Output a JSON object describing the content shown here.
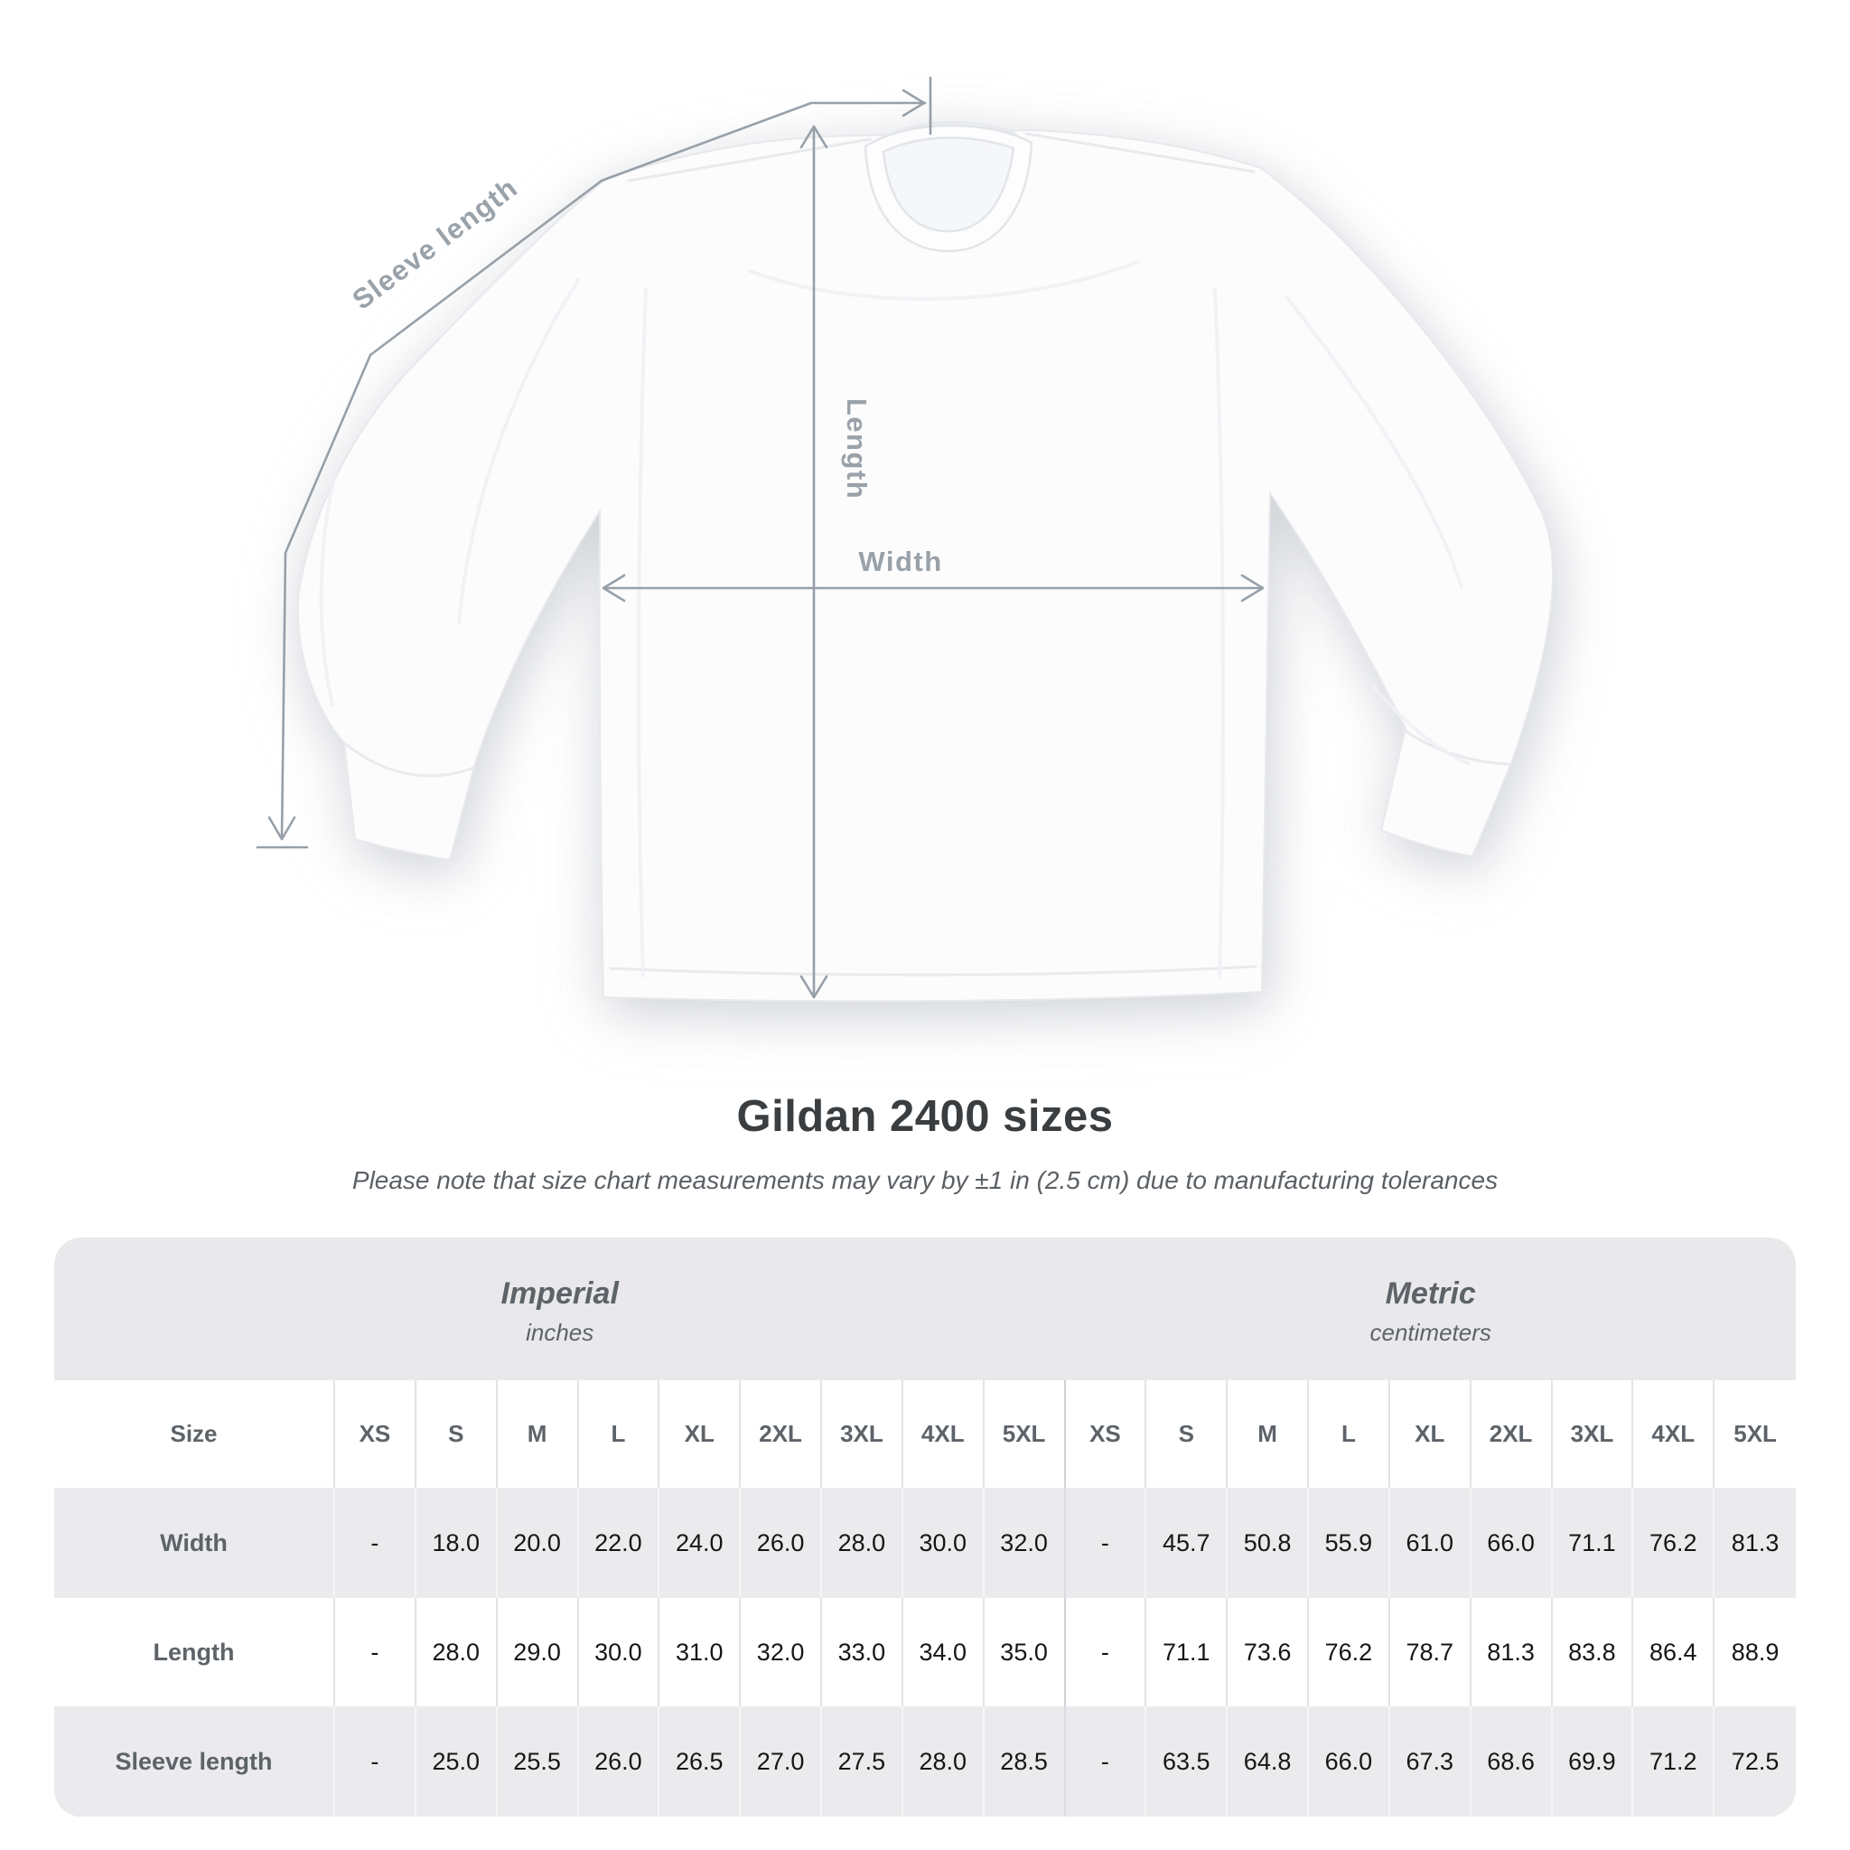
{
  "diagram": {
    "sleeve_length_label": "Sleeve length",
    "length_label": "Length",
    "width_label": "Width"
  },
  "title": "Gildan 2400 sizes",
  "subtitle": "Please note that size chart measurements may vary by ±1 in (2.5 cm) due to manufacturing tolerances",
  "table": {
    "sections": [
      {
        "label": "Imperial",
        "unit": "inches"
      },
      {
        "label": "Metric",
        "unit": "centimeters"
      }
    ],
    "size_column_header": "Size",
    "sizes": [
      "XS",
      "S",
      "M",
      "L",
      "XL",
      "2XL",
      "3XL",
      "4XL",
      "5XL"
    ],
    "rows": [
      {
        "label": "Width",
        "imperial": [
          "-",
          "18.0",
          "20.0",
          "22.0",
          "24.0",
          "26.0",
          "28.0",
          "30.0",
          "32.0"
        ],
        "metric": [
          "-",
          "45.7",
          "50.8",
          "55.9",
          "61.0",
          "66.0",
          "71.1",
          "76.2",
          "81.3"
        ]
      },
      {
        "label": "Length",
        "imperial": [
          "-",
          "28.0",
          "29.0",
          "30.0",
          "31.0",
          "32.0",
          "33.0",
          "34.0",
          "35.0"
        ],
        "metric": [
          "-",
          "71.1",
          "73.6",
          "76.2",
          "78.7",
          "81.3",
          "83.8",
          "86.4",
          "88.9"
        ]
      },
      {
        "label": "Sleeve length",
        "imperial": [
          "-",
          "25.0",
          "25.5",
          "26.0",
          "26.5",
          "27.0",
          "27.5",
          "28.0",
          "28.5"
        ],
        "metric": [
          "-",
          "63.5",
          "64.8",
          "66.0",
          "67.3",
          "68.6",
          "69.9",
          "71.2",
          "72.5"
        ]
      }
    ]
  },
  "colors": {
    "annotation_gray": "#97a0a8",
    "title_text": "#3a3e41",
    "muted_text": "#5d6368",
    "value_text": "#161616",
    "table_bg": "#e9e9ec",
    "row_alt_bg": "#ebebee",
    "row_white_bg": "#ffffff"
  }
}
